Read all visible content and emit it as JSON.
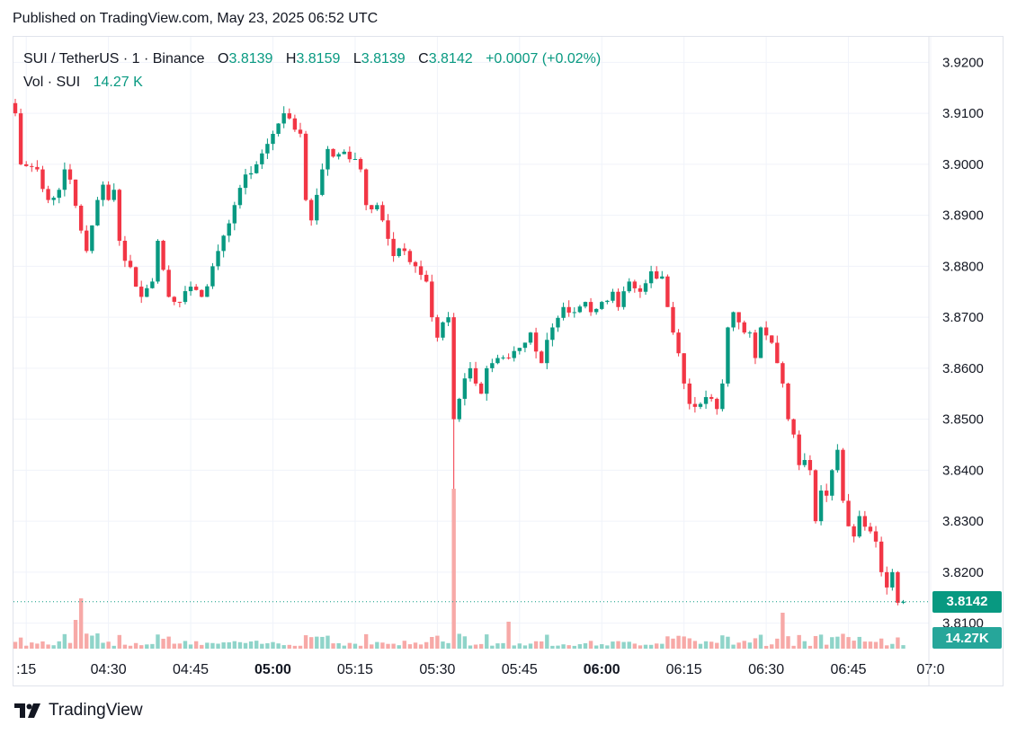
{
  "header": {
    "published": "Published on TradingView.com, May 23, 2025 06:52 UTC"
  },
  "legend": {
    "symbol": "SUI / TetherUS · 1 · Binance",
    "o_label": "O",
    "o_value": "3.8139",
    "h_label": "H",
    "h_value": "3.8159",
    "l_label": "L",
    "l_value": "3.8139",
    "c_label": "C",
    "c_value": "3.8142",
    "change": "+0.0007 (+0.02%)",
    "vol_label": "Vol · SUI",
    "vol_value": "14.27 K"
  },
  "footer": {
    "brand": "TradingView"
  },
  "colors": {
    "up": "#089981",
    "down": "#f23645",
    "up_vol": "#8fd4c9",
    "down_vol": "#f7a9a7",
    "grid": "#f0f3fa",
    "text": "#131722"
  },
  "chart_data": {
    "type": "candlestick",
    "title": "SUI / TetherUS · 1 · Binance",
    "interval_minutes": 1,
    "ylim": [
      3.805,
      3.925
    ],
    "y_ticks": [
      "3.9200",
      "3.9100",
      "3.9000",
      "3.8900",
      "3.8800",
      "3.8700",
      "3.8600",
      "3.8500",
      "3.8400",
      "3.8300",
      "3.8200",
      "3.8100"
    ],
    "x_start_minutes": 253,
    "x_end_minutes": 420,
    "x_ticks": [
      {
        "label": ":15",
        "minute": 255,
        "bold": false
      },
      {
        "label": "04:30",
        "minute": 270,
        "bold": false
      },
      {
        "label": "04:45",
        "minute": 285,
        "bold": false
      },
      {
        "label": "05:00",
        "minute": 300,
        "bold": true
      },
      {
        "label": "05:15",
        "minute": 315,
        "bold": false
      },
      {
        "label": "05:30",
        "minute": 330,
        "bold": false
      },
      {
        "label": "05:45",
        "minute": 345,
        "bold": false
      },
      {
        "label": "06:00",
        "minute": 360,
        "bold": true
      },
      {
        "label": "06:15",
        "minute": 375,
        "bold": false
      },
      {
        "label": "06:30",
        "minute": 390,
        "bold": false
      },
      {
        "label": "06:45",
        "minute": 405,
        "bold": false
      },
      {
        "label": "07:0",
        "minute": 420,
        "bold": false
      }
    ],
    "current_price": "3.8142",
    "current_volume": "14.27K",
    "price_waypoints": [
      [
        253,
        3.91
      ],
      [
        254,
        3.9
      ],
      [
        257,
        3.899
      ],
      [
        259,
        3.893
      ],
      [
        261,
        3.895
      ],
      [
        262,
        3.899
      ],
      [
        263,
        3.897
      ],
      [
        265,
        3.887
      ],
      [
        266,
        3.883
      ],
      [
        268,
        3.893
      ],
      [
        269,
        3.896
      ],
      [
        270,
        3.893
      ],
      [
        271,
        3.895
      ],
      [
        272,
        3.885
      ],
      [
        275,
        3.876
      ],
      [
        276,
        3.874
      ],
      [
        278,
        3.877
      ],
      [
        279,
        3.885
      ],
      [
        281,
        3.874
      ],
      [
        283,
        3.873
      ],
      [
        285,
        3.876
      ],
      [
        287,
        3.874
      ],
      [
        289,
        3.88
      ],
      [
        291,
        3.886
      ],
      [
        293,
        3.892
      ],
      [
        295,
        3.898
      ],
      [
        297,
        3.9
      ],
      [
        299,
        3.904
      ],
      [
        301,
        3.908
      ],
      [
        302,
        3.91
      ],
      [
        303,
        3.909
      ],
      [
        305,
        3.906
      ],
      [
        306,
        3.893
      ],
      [
        307,
        3.889
      ],
      [
        308,
        3.894
      ],
      [
        309,
        3.899
      ],
      [
        310,
        3.903
      ],
      [
        312,
        3.902
      ],
      [
        314,
        3.901
      ],
      [
        316,
        3.899
      ],
      [
        317,
        3.892
      ],
      [
        319,
        3.892
      ],
      [
        320,
        3.889
      ],
      [
        322,
        3.882
      ],
      [
        324,
        3.883
      ],
      [
        326,
        3.88
      ],
      [
        328,
        3.877
      ],
      [
        329,
        3.87
      ],
      [
        330,
        3.866
      ],
      [
        331,
        3.869
      ],
      [
        332,
        3.87
      ],
      [
        333,
        3.85
      ],
      [
        334,
        3.854
      ],
      [
        335,
        3.858
      ],
      [
        336,
        3.86
      ],
      [
        337,
        3.857
      ],
      [
        338,
        3.855
      ],
      [
        339,
        3.86
      ],
      [
        340,
        3.861
      ],
      [
        341,
        3.862
      ],
      [
        343,
        3.862
      ],
      [
        345,
        3.864
      ],
      [
        347,
        3.867
      ],
      [
        349,
        3.861
      ],
      [
        351,
        3.868
      ],
      [
        353,
        3.872
      ],
      [
        355,
        3.871
      ],
      [
        357,
        3.873
      ],
      [
        358,
        3.871
      ],
      [
        360,
        3.873
      ],
      [
        362,
        3.875
      ],
      [
        363,
        3.872
      ],
      [
        365,
        3.877
      ],
      [
        367,
        3.875
      ],
      [
        369,
        3.879
      ],
      [
        371,
        3.878
      ],
      [
        372,
        3.872
      ],
      [
        373,
        3.867
      ],
      [
        375,
        3.857
      ],
      [
        376,
        3.853
      ],
      [
        378,
        3.853
      ],
      [
        380,
        3.854
      ],
      [
        381,
        3.852
      ],
      [
        382,
        3.857
      ],
      [
        383,
        3.868
      ],
      [
        384,
        3.871
      ],
      [
        385,
        3.869
      ],
      [
        386,
        3.867
      ],
      [
        387,
        3.867
      ],
      [
        388,
        3.862
      ],
      [
        389,
        3.868
      ],
      [
        391,
        3.865
      ],
      [
        392,
        3.861
      ],
      [
        393,
        3.857
      ],
      [
        394,
        3.85
      ],
      [
        395,
        3.847
      ],
      [
        396,
        3.841
      ],
      [
        397,
        3.842
      ],
      [
        398,
        3.84
      ],
      [
        399,
        3.83
      ],
      [
        400,
        3.836
      ],
      [
        401,
        3.835
      ],
      [
        402,
        3.84
      ],
      [
        403,
        3.844
      ],
      [
        404,
        3.834
      ],
      [
        405,
        3.829
      ],
      [
        406,
        3.827
      ],
      [
        407,
        3.831
      ],
      [
        409,
        3.828
      ],
      [
        410,
        3.826
      ],
      [
        411,
        3.82
      ],
      [
        412,
        3.817
      ],
      [
        413,
        3.82
      ],
      [
        414,
        3.814
      ],
      [
        415,
        3.8142
      ]
    ]
  }
}
